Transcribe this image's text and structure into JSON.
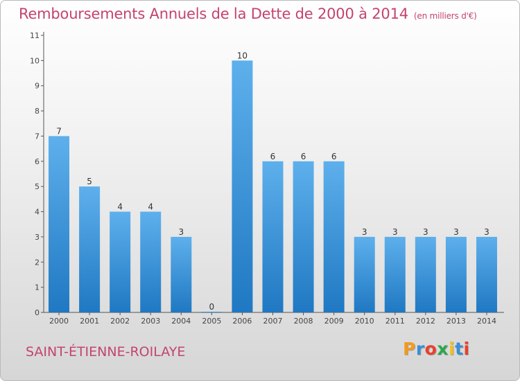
{
  "chart_data": {
    "type": "bar",
    "title": "Remboursements Annuels de la Dette de 2000 à 2014",
    "subtitle": "(en milliers d'€)",
    "categories": [
      "2000",
      "2001",
      "2002",
      "2003",
      "2004",
      "2005",
      "2006",
      "2007",
      "2008",
      "2009",
      "2010",
      "2011",
      "2012",
      "2013",
      "2014"
    ],
    "values": [
      7,
      5,
      4,
      4,
      3,
      0,
      10,
      6,
      6,
      6,
      3,
      3,
      3,
      3,
      3
    ],
    "yticks": [
      "0",
      "1",
      "2",
      "3",
      "4",
      "5",
      "6",
      "7",
      "8",
      "9",
      "10",
      "11"
    ],
    "ylim": [
      0,
      11
    ],
    "bar_color": "#3a93d8",
    "grid": false
  },
  "footer": {
    "commune": "SAINT-ÉTIENNE-ROILAYE"
  },
  "logo": {
    "letters": [
      "P",
      "r",
      "o",
      "x",
      "i",
      "t",
      "i"
    ],
    "colors": [
      "#f39a1c",
      "#3a8fd6",
      "#e8412c",
      "#2aa84a",
      "#f2c21b",
      "#3a8fd6",
      "#e8412c"
    ]
  },
  "colors": {
    "title": "#c4436f",
    "axis": "#555555"
  }
}
